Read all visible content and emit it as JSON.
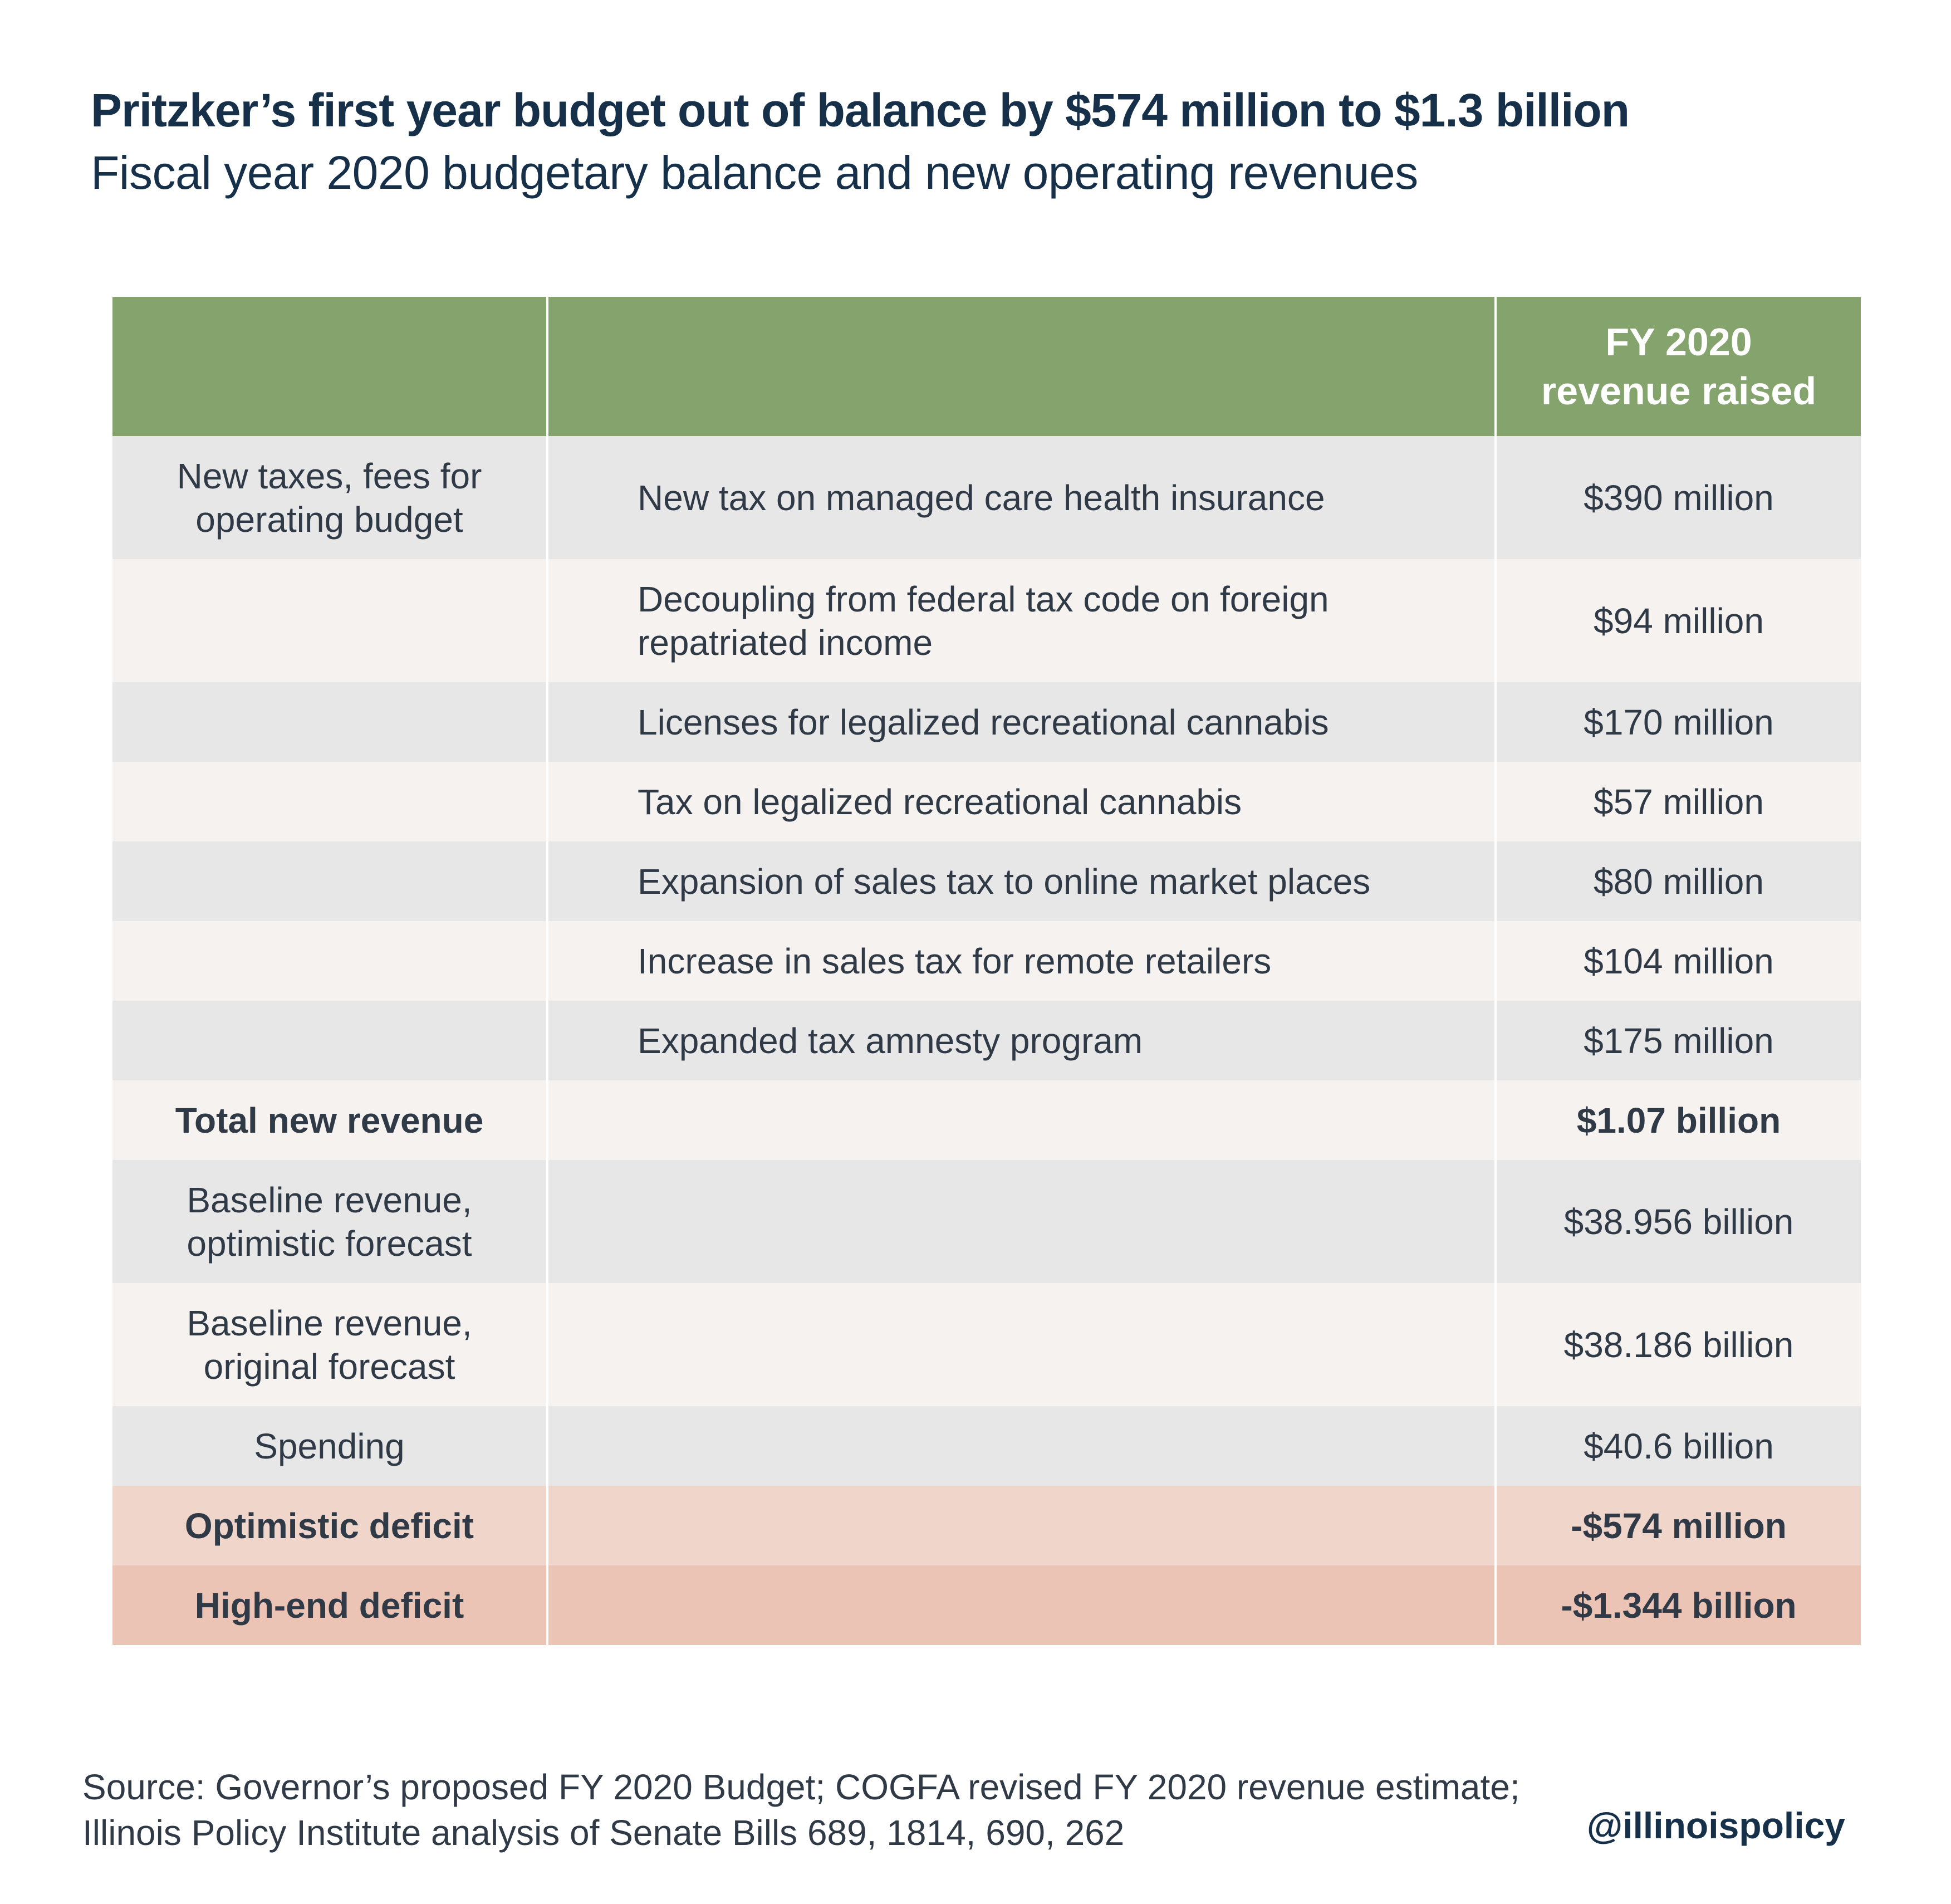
{
  "title": "Pritzker’s first year budget out of balance by $574 million to $1.3 billion",
  "subtitle": "Fiscal year 2020 budgetary balance and new operating revenues",
  "chart_data": {
    "type": "table",
    "columns": [
      "",
      "",
      "FY 2020\nrevenue raised"
    ],
    "column_header_lines": [
      "FY 2020",
      "revenue raised"
    ],
    "rows": [
      {
        "category": "New taxes, fees for operating budget",
        "category_lines": [
          "New taxes, fees for",
          "operating budget"
        ],
        "item": "New tax on managed care health insurance",
        "item_lines": [
          "New tax on managed care health insurance"
        ],
        "value": "$390 million",
        "value_num": 390000000
      },
      {
        "category": "",
        "category_lines": [],
        "item": "Decoupling from federal tax code on foreign repatriated income",
        "item_lines": [
          "Decoupling from federal tax code on foreign",
          "repatriated income"
        ],
        "value": "$94 million",
        "value_num": 94000000
      },
      {
        "category": "",
        "category_lines": [],
        "item": "Licenses for legalized recreational cannabis",
        "item_lines": [
          "Licenses for legalized recreational cannabis"
        ],
        "value": "$170 million",
        "value_num": 170000000
      },
      {
        "category": "",
        "category_lines": [],
        "item": "Tax on legalized recreational cannabis",
        "item_lines": [
          "Tax on legalized recreational cannabis"
        ],
        "value": "$57 million",
        "value_num": 57000000
      },
      {
        "category": "",
        "category_lines": [],
        "item": "Expansion of sales tax to online market places",
        "item_lines": [
          "Expansion of sales tax to online market places"
        ],
        "value": "$80 million",
        "value_num": 80000000
      },
      {
        "category": "",
        "category_lines": [],
        "item": "Increase in sales tax for remote retailers",
        "item_lines": [
          "Increase in sales tax for remote retailers"
        ],
        "value": "$104 million",
        "value_num": 104000000
      },
      {
        "category": "",
        "category_lines": [],
        "item": "Expanded tax amnesty program",
        "item_lines": [
          "Expanded tax amnesty program"
        ],
        "value": "$175 million",
        "value_num": 175000000
      },
      {
        "category": "Total new revenue",
        "category_lines": [
          "Total new revenue"
        ],
        "item": "",
        "item_lines": [],
        "value": "$1.07 billion",
        "value_num": 1070000000
      },
      {
        "category": "Baseline revenue, optimistic forecast",
        "category_lines": [
          "Baseline revenue,",
          "optimistic forecast"
        ],
        "item": "",
        "item_lines": [],
        "value": "$38.956 billion",
        "value_num": 38956000000
      },
      {
        "category": "Baseline revenue, original forecast",
        "category_lines": [
          "Baseline revenue,",
          "original forecast"
        ],
        "item": "",
        "item_lines": [],
        "value": "$38.186 billion",
        "value_num": 38186000000
      },
      {
        "category": "Spending",
        "category_lines": [
          "Spending"
        ],
        "item": "",
        "item_lines": [],
        "value": "$40.6 billion",
        "value_num": 40600000000
      },
      {
        "category": "Optimistic deficit",
        "category_lines": [
          "Optimistic deficit"
        ],
        "item": "",
        "item_lines": [],
        "value": "-$574 million",
        "value_num": -574000000
      },
      {
        "category": "High-end deficit",
        "category_lines": [
          "High-end deficit"
        ],
        "item": "",
        "item_lines": [],
        "value": "-$1.344 billion",
        "value_num": -1344000000
      }
    ]
  },
  "colors": {
    "header": "#85a36d",
    "row_gray": "#e8e7e8",
    "row_cream": "#f5f2ef",
    "deficit_light": "#f0d5cb",
    "deficit_dark": "#ecc4b6",
    "title": "#17304a"
  },
  "footer": {
    "source_lines": [
      "Source: Governor’s proposed FY 2020 Budget; COGFA revised FY 2020 revenue estimate;",
      "Illinois Policy Institute analysis of Senate Bills 689, 1814, 690, 262"
    ],
    "handle": "@illinoispolicy"
  }
}
